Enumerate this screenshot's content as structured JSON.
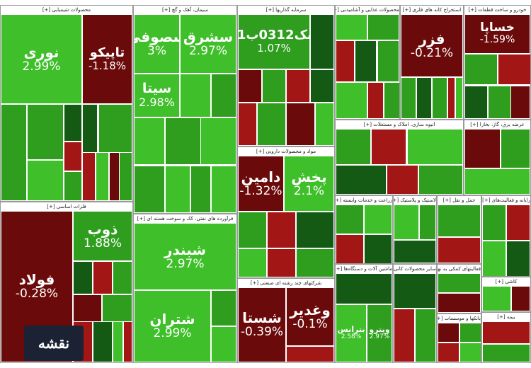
{
  "colors": {
    "dark_red": "#6b0a0a",
    "red": "#a31616",
    "dark_green": "#145a14",
    "green": "#2f9e1f",
    "light_green": "#3fbf2a"
  },
  "logo": {
    "text": "نقشه"
  },
  "sectors": [
    {
      "title": "محصولات شیمیایی [+]",
      "tiles": [
        {
          "sym": "نوری",
          "chg": "2.99%",
          "c": "light_green"
        },
        {
          "sym": "تاپیکو",
          "chg": "-1.18%",
          "c": "dark_red"
        },
        {
          "sym": "",
          "chg": "",
          "c": "green"
        },
        {
          "sym": "",
          "chg": "",
          "c": "green"
        },
        {
          "sym": "",
          "chg": "",
          "c": "light_green"
        },
        {
          "sym": "",
          "chg": "",
          "c": "dark_green"
        },
        {
          "sym": "",
          "chg": "",
          "c": "red"
        },
        {
          "sym": "",
          "chg": "",
          "c": "green"
        },
        {
          "sym": "",
          "chg": "",
          "c": "dark_green"
        },
        {
          "sym": "",
          "chg": "",
          "c": "green"
        },
        {
          "sym": "",
          "chg": "",
          "c": "red"
        },
        {
          "sym": "",
          "chg": "",
          "c": "light_green"
        },
        {
          "sym": "",
          "chg": "",
          "c": "dark_red"
        },
        {
          "sym": "",
          "chg": "",
          "c": "green"
        }
      ]
    },
    {
      "title": "فلزات اساسی [+]",
      "tiles": [
        {
          "sym": "فولاد",
          "chg": "-0.28%",
          "c": "dark_red"
        },
        {
          "sym": "ذوب",
          "chg": "1.88%",
          "c": "green"
        },
        {
          "sym": "",
          "chg": "",
          "c": "dark_green"
        },
        {
          "sym": "",
          "chg": "",
          "c": "red"
        },
        {
          "sym": "",
          "chg": "",
          "c": "green"
        },
        {
          "sym": "",
          "chg": "",
          "c": "dark_red"
        },
        {
          "sym": "",
          "chg": "",
          "c": "green"
        },
        {
          "sym": "",
          "chg": "",
          "c": "red"
        },
        {
          "sym": "",
          "chg": "",
          "c": "dark_green"
        },
        {
          "sym": "",
          "chg": "",
          "c": "light_green"
        },
        {
          "sym": "",
          "chg": "",
          "c": "red"
        }
      ]
    },
    {
      "title": "سیمان، آهک و گچ [+]",
      "tiles": [
        {
          "sym": "سصوفی",
          "chg": "3%",
          "c": "light_green"
        },
        {
          "sym": "سشرق",
          "chg": "2.97%",
          "c": "light_green"
        },
        {
          "sym": "سیتا",
          "chg": "2.98%",
          "c": "light_green"
        },
        {
          "sym": "",
          "chg": "",
          "c": "light_green"
        },
        {
          "sym": "",
          "chg": "",
          "c": "green"
        },
        {
          "sym": "",
          "chg": "",
          "c": "light_green"
        },
        {
          "sym": "",
          "chg": "",
          "c": "green"
        },
        {
          "sym": "",
          "chg": "",
          "c": "light_green"
        },
        {
          "sym": "",
          "chg": "",
          "c": "green"
        },
        {
          "sym": "",
          "chg": "",
          "c": "light_green"
        },
        {
          "sym": "",
          "chg": "",
          "c": "green"
        },
        {
          "sym": "",
          "chg": "",
          "c": "light_green"
        }
      ]
    },
    {
      "title": "فرآورده های نفتی، کک و سوخت هسته ای [+]",
      "tiles": [
        {
          "sym": "شبندر",
          "chg": "2.97%",
          "c": "light_green"
        },
        {
          "sym": "شتران",
          "chg": "2.99%",
          "c": "light_green"
        },
        {
          "sym": "",
          "chg": "",
          "c": "green"
        },
        {
          "sym": "",
          "chg": "",
          "c": "light_green"
        }
      ]
    },
    {
      "title": "سرمایه گذاریها [+]",
      "tiles": [
        {
          "sym": "سک0312ب01",
          "chg": "1.07%",
          "c": "green"
        },
        {
          "sym": "",
          "chg": "",
          "c": "dark_green"
        },
        {
          "sym": "",
          "chg": "",
          "c": "dark_red"
        },
        {
          "sym": "",
          "chg": "",
          "c": "green"
        },
        {
          "sym": "",
          "chg": "",
          "c": "red"
        },
        {
          "sym": "",
          "chg": "",
          "c": "dark_green"
        },
        {
          "sym": "",
          "chg": "",
          "c": "red"
        },
        {
          "sym": "",
          "chg": "",
          "c": "green"
        },
        {
          "sym": "",
          "chg": "",
          "c": "dark_red"
        },
        {
          "sym": "",
          "chg": "",
          "c": "light_green"
        }
      ]
    },
    {
      "title": "مواد و محصولات دارویی [+]",
      "tiles": [
        {
          "sym": "دامین",
          "chg": "-1.32%",
          "c": "dark_red"
        },
        {
          "sym": "پخش",
          "chg": "2.1%",
          "c": "light_green"
        },
        {
          "sym": "",
          "chg": "",
          "c": "green"
        },
        {
          "sym": "",
          "chg": "",
          "c": "red"
        },
        {
          "sym": "",
          "chg": "",
          "c": "dark_green"
        },
        {
          "sym": "",
          "chg": "",
          "c": "light_green"
        },
        {
          "sym": "",
          "chg": "",
          "c": "red"
        },
        {
          "sym": "",
          "chg": "",
          "c": "green"
        }
      ]
    },
    {
      "title": "شرکتهای چند رشته ای صنعتی [+]",
      "tiles": [
        {
          "sym": "شستا",
          "chg": "-0.39%",
          "c": "dark_red"
        },
        {
          "sym": "وغدیر",
          "chg": "-0.1%",
          "c": "dark_red"
        },
        {
          "sym": "",
          "chg": "",
          "c": "red"
        }
      ]
    },
    {
      "title": "محصولات غذایی و آشامیدنی [+]",
      "tiles": [
        {
          "sym": "",
          "chg": "",
          "c": "light_green"
        },
        {
          "sym": "",
          "chg": "",
          "c": "green"
        },
        {
          "sym": "",
          "chg": "",
          "c": "red"
        },
        {
          "sym": "",
          "chg": "",
          "c": "dark_green"
        },
        {
          "sym": "",
          "chg": "",
          "c": "green"
        },
        {
          "sym": "",
          "chg": "",
          "c": "light_green"
        },
        {
          "sym": "",
          "chg": "",
          "c": "red"
        },
        {
          "sym": "",
          "chg": "",
          "c": "green"
        }
      ]
    },
    {
      "title": "استخراج کانه های فلزی [+]",
      "tiles": [
        {
          "sym": "فزر",
          "chg": "-0.21%",
          "c": "dark_red"
        },
        {
          "sym": "",
          "chg": "",
          "c": "green"
        },
        {
          "sym": "",
          "chg": "",
          "c": "dark_green"
        },
        {
          "sym": "",
          "chg": "",
          "c": "green"
        },
        {
          "sym": "",
          "chg": "",
          "c": "red"
        },
        {
          "sym": "",
          "chg": "",
          "c": "light_green"
        }
      ]
    },
    {
      "title": "خودرو و ساخت قطعات [+]",
      "tiles": [
        {
          "sym": "خساپا",
          "chg": "-1.59%",
          "c": "dark_red"
        },
        {
          "sym": "",
          "chg": "",
          "c": "green"
        },
        {
          "sym": "",
          "chg": "",
          "c": "red"
        },
        {
          "sym": "",
          "chg": "",
          "c": "dark_green"
        },
        {
          "sym": "",
          "chg": "",
          "c": "green"
        },
        {
          "sym": "",
          "chg": "",
          "c": "dark_red"
        }
      ]
    },
    {
      "title": "انبوه سازی، املاک و مستغلات [+]",
      "tiles": [
        {
          "sym": "",
          "chg": "",
          "c": "green"
        },
        {
          "sym": "",
          "chg": "",
          "c": "red"
        },
        {
          "sym": "",
          "chg": "",
          "c": "light_green"
        },
        {
          "sym": "",
          "chg": "",
          "c": "dark_green"
        },
        {
          "sym": "",
          "chg": "",
          "c": "red"
        },
        {
          "sym": "",
          "chg": "",
          "c": "green"
        }
      ]
    },
    {
      "title": "عرضه برق، گاز، بخارا [+]",
      "tiles": [
        {
          "sym": "",
          "chg": "",
          "c": "dark_red"
        },
        {
          "sym": "",
          "chg": "",
          "c": "green"
        },
        {
          "sym": "",
          "chg": "",
          "c": "light_green"
        }
      ]
    },
    {
      "title": "رایانه و فعالیت‌های [+]",
      "tiles": [
        {
          "sym": "",
          "chg": "",
          "c": "green"
        },
        {
          "sym": "",
          "chg": "",
          "c": "red"
        },
        {
          "sym": "",
          "chg": "",
          "c": "light_green"
        },
        {
          "sym": "",
          "chg": "",
          "c": "dark_green"
        }
      ]
    },
    {
      "title": "زراعت و خدمات وابسته [+]",
      "tiles": [
        {
          "sym": "",
          "chg": "",
          "c": "green"
        },
        {
          "sym": "",
          "chg": "",
          "c": "light_green"
        },
        {
          "sym": "",
          "chg": "",
          "c": "red"
        },
        {
          "sym": "",
          "chg": "",
          "c": "dark_green"
        }
      ]
    },
    {
      "title": "لاستیک و پلاستیک [+]",
      "tiles": [
        {
          "sym": "",
          "chg": "",
          "c": "light_green"
        },
        {
          "sym": "",
          "chg": "",
          "c": "green"
        },
        {
          "sym": "",
          "chg": "",
          "c": "dark_green"
        }
      ]
    },
    {
      "title": "حمل و نقل [+]",
      "tiles": [
        {
          "sym": "",
          "chg": "",
          "c": "green"
        },
        {
          "sym": "",
          "chg": "",
          "c": "red"
        }
      ]
    },
    {
      "title": "کاشی [+]",
      "tiles": [
        {
          "sym": "",
          "chg": "",
          "c": "light_green"
        },
        {
          "sym": "",
          "chg": "",
          "c": "dark_red"
        }
      ]
    },
    {
      "title": "سایر محصولات کانی [+]",
      "tiles": [
        {
          "sym": "",
          "chg": "",
          "c": "dark_green"
        },
        {
          "sym": "",
          "chg": "",
          "c": "red"
        },
        {
          "sym": "",
          "chg": "",
          "c": "green"
        }
      ]
    },
    {
      "title": "ماشین آلات و دستگاه‌ها [+]",
      "tiles": [
        {
          "sym": "بترانس",
          "chg": "2.58%",
          "c": "light_green"
        },
        {
          "sym": "وپترو",
          "chg": "2.97%",
          "c": "green"
        },
        {
          "sym": "",
          "chg": "",
          "c": "dark_green"
        }
      ]
    },
    {
      "title": "فعالیتهای کمکی به نهاد [+]",
      "tiles": [
        {
          "sym": "",
          "chg": "",
          "c": "green"
        },
        {
          "sym": "",
          "chg": "",
          "c": "dark_red"
        }
      ]
    },
    {
      "title": "بانکها و موسسات [+]",
      "tiles": [
        {
          "sym": "",
          "chg": "",
          "c": "dark_red"
        },
        {
          "sym": "",
          "chg": "",
          "c": "green"
        },
        {
          "sym": "",
          "chg": "",
          "c": "red"
        },
        {
          "sym": "",
          "chg": "",
          "c": "light_green"
        }
      ]
    },
    {
      "title": "بیمه [+]",
      "tiles": [
        {
          "sym": "",
          "chg": "",
          "c": "red"
        },
        {
          "sym": "",
          "chg": "",
          "c": "green"
        }
      ]
    }
  ]
}
